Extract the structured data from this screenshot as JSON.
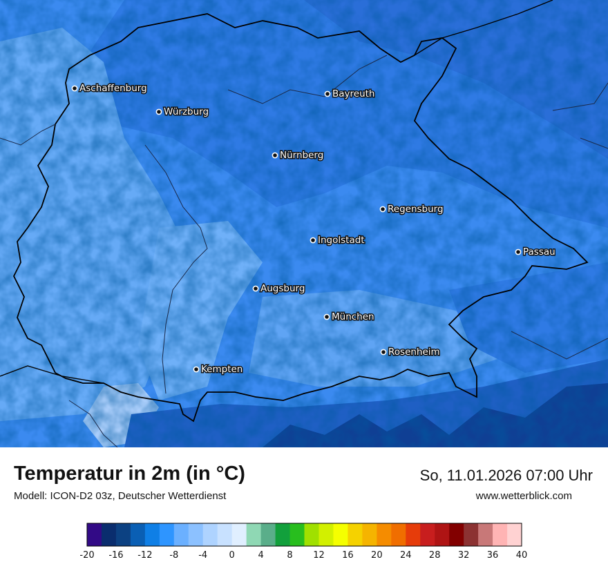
{
  "title": "Temperatur in 2m (in °C)",
  "subtitle": "Modell: ICON-D2 03z, Deutscher Wetterdienst",
  "datetime": "So, 11.01.2026 07:00 Uhr",
  "website": "www.wetterblick.com",
  "cities": [
    {
      "name": "Aschaffenburg"
    },
    {
      "name": "Würzburg"
    },
    {
      "name": "Bayreuth"
    },
    {
      "name": "Nürnberg"
    },
    {
      "name": "Regensburg"
    },
    {
      "name": "Ingolstadt"
    },
    {
      "name": "Passau"
    },
    {
      "name": "Augsburg"
    },
    {
      "name": "München"
    },
    {
      "name": "Rosenheim"
    },
    {
      "name": "Kempten"
    }
  ],
  "legend": {
    "min": -20,
    "max": 40,
    "step": 2,
    "tick_labels": [
      "-20",
      "-16",
      "-12",
      "-8",
      "-4",
      "0",
      "4",
      "8",
      "12",
      "16",
      "20",
      "24",
      "28",
      "32",
      "36",
      "40"
    ],
    "colors": [
      "#320a86",
      "#0a2d6e",
      "#0c4182",
      "#0a5fb4",
      "#0f7fe6",
      "#2e95ff",
      "#6bb0ff",
      "#8cc1ff",
      "#aed3ff",
      "#c8e1ff",
      "#e0efff",
      "#8fd8b4",
      "#5aae8a",
      "#12a03c",
      "#28be1e",
      "#a0e000",
      "#d2f000",
      "#f5ff00",
      "#f5d200",
      "#f5b400",
      "#f58c00",
      "#f06e00",
      "#e63c0a",
      "#c81e1e",
      "#af1414",
      "#820000",
      "#8c3232",
      "#c87878",
      "#ffb4b4",
      "#ffd2d2"
    ]
  }
}
